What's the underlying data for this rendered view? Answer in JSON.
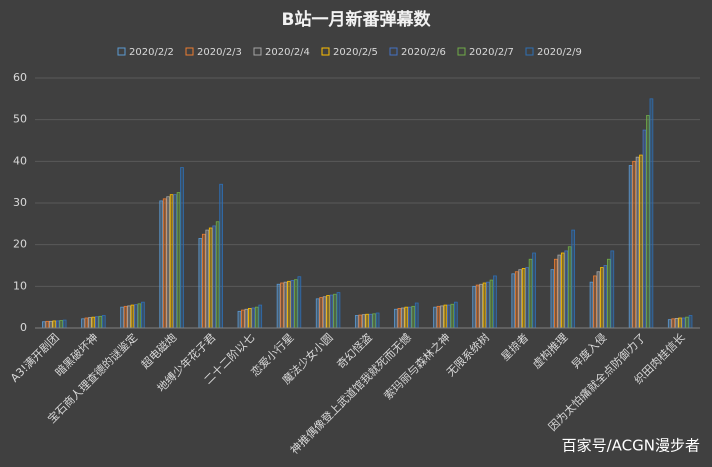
{
  "chart_data": {
    "type": "bar",
    "title": "B站一月新番弹幕数",
    "categories": [
      "A3!满开剧团",
      "暗黑破坏神",
      "宝石商人理查德的谜鉴定",
      "超电磁炮",
      "地缚少年花子君",
      "二十二阶以七",
      "恋爱小行星",
      "魔法少女小圆",
      "奇幻怪盗",
      "神推偶像登上武道馆我就死而无憾",
      "索玛丽与森林之神",
      "无限系统树",
      "星掠者",
      "虚构推理",
      "异度入侵",
      "因为太怕痛就全点防御力了",
      "织田肉桂信长"
    ],
    "series": [
      {
        "name": "2020/2/2",
        "color": "#5b9bd5",
        "values": [
          1.5,
          2.2,
          5,
          30.5,
          21.5,
          4,
          10.5,
          7,
          3,
          4.5,
          5,
          10,
          13,
          14,
          11,
          39,
          2
        ]
      },
      {
        "name": "2020/2/3",
        "color": "#ed7d31",
        "values": [
          1.6,
          2.4,
          5.2,
          31,
          22.5,
          4.3,
          10.8,
          7.3,
          3.1,
          4.7,
          5.2,
          10.3,
          13.5,
          16.5,
          12.5,
          40,
          2.2
        ]
      },
      {
        "name": "2020/2/4",
        "color": "#a5a5a5",
        "values": [
          1.6,
          2.5,
          5.3,
          31.5,
          23.5,
          4.5,
          11,
          7.5,
          3.2,
          4.8,
          5.3,
          10.5,
          14,
          17.5,
          13.5,
          41,
          2.3
        ]
      },
      {
        "name": "2020/2/5",
        "color": "#ffc000",
        "values": [
          1.7,
          2.6,
          5.5,
          32,
          24,
          4.7,
          11.2,
          7.8,
          3.3,
          5,
          5.5,
          10.8,
          14.3,
          18,
          14.5,
          41.5,
          2.4
        ]
      },
      {
        "name": "2020/2/6",
        "color": "#4472c4",
        "values": [
          1.7,
          2.7,
          5.6,
          32,
          24.5,
          4.8,
          11.4,
          7.9,
          3.3,
          5,
          5.5,
          11,
          14.5,
          18.5,
          15,
          47.5,
          2.4
        ]
      },
      {
        "name": "2020/2/7",
        "color": "#70ad47",
        "values": [
          1.8,
          2.8,
          5.8,
          32.5,
          25.5,
          5,
          11.6,
          8.1,
          3.4,
          5.2,
          5.7,
          11.5,
          16.5,
          19.5,
          16.5,
          51,
          2.6
        ]
      },
      {
        "name": "2020/2/9",
        "color": "#2e6fb5",
        "values": [
          1.9,
          3,
          6.2,
          38.5,
          34.5,
          5.5,
          12.3,
          8.5,
          3.6,
          6,
          6.2,
          12.5,
          18,
          23.5,
          18.5,
          55,
          3
        ]
      }
    ],
    "ylim": [
      0,
      60
    ],
    "yticks": [
      0,
      10,
      20,
      30,
      40,
      50,
      60
    ],
    "grid": true,
    "watermark": "百家号/ACGN漫步者"
  }
}
